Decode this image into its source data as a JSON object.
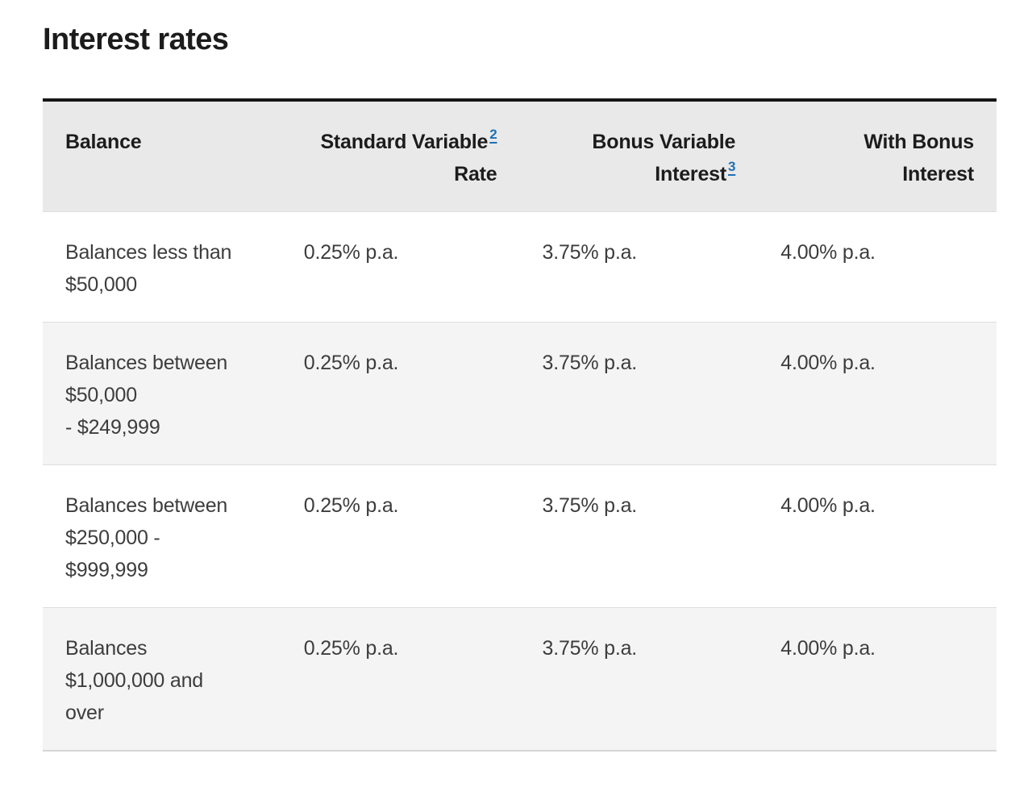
{
  "page": {
    "title": "Interest rates"
  },
  "colors": {
    "link_blue": "#1d70b5",
    "header_bg": "#e9e9e9",
    "alt_row_bg": "#f4f4f4",
    "top_border": "#161616"
  },
  "table": {
    "header": {
      "balance": "Balance",
      "standard": {
        "line1": "Standard Variable",
        "sup": "2",
        "line2": "Rate"
      },
      "bonus": {
        "line1": "Bonus Variable",
        "line2": "Interest",
        "sup": "3"
      },
      "with_bonus": {
        "line1": "With Bonus",
        "line2": "Interest"
      }
    },
    "rows": [
      {
        "balance": "Balances less than\n$50,000",
        "standard_rate": "0.25% p.a.",
        "bonus_rate": "3.75% p.a.",
        "with_bonus_rate": "4.00% p.a."
      },
      {
        "balance": "Balances between\n$50,000\n- $249,999",
        "standard_rate": "0.25% p.a.",
        "bonus_rate": "3.75% p.a.",
        "with_bonus_rate": "4.00% p.a."
      },
      {
        "balance": "Balances between\n$250,000 -\n$999,999",
        "standard_rate": "0.25% p.a.",
        "bonus_rate": "3.75% p.a.",
        "with_bonus_rate": "4.00% p.a."
      },
      {
        "balance": "Balances\n$1,000,000 and\nover",
        "standard_rate": "0.25% p.a.",
        "bonus_rate": "3.75% p.a.",
        "with_bonus_rate": "4.00% p.a."
      }
    ]
  }
}
